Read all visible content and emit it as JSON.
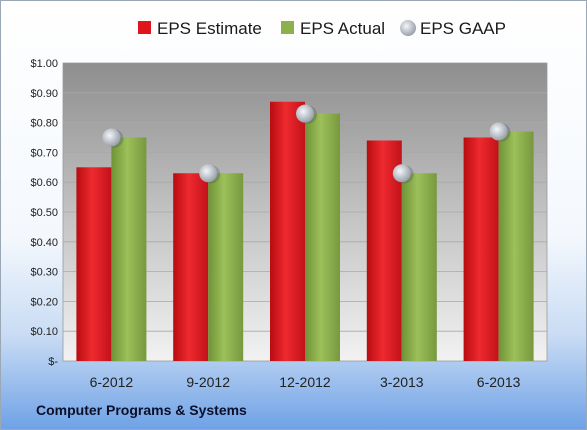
{
  "chart_data": {
    "type": "bar",
    "categories": [
      "6-2012",
      "9-2012",
      "12-2012",
      "3-2013",
      "6-2013"
    ],
    "series": [
      {
        "name": "EPS Estimate",
        "kind": "bar",
        "color": "#e0151c",
        "values": [
          0.65,
          0.63,
          0.87,
          0.74,
          0.75
        ]
      },
      {
        "name": "EPS Actual",
        "kind": "bar",
        "color": "#8db04a",
        "values": [
          0.75,
          0.63,
          0.83,
          0.63,
          0.77
        ]
      },
      {
        "name": "EPS GAAP",
        "kind": "marker",
        "color": "#c4c9d1",
        "values": [
          0.75,
          0.63,
          0.83,
          0.63,
          0.77
        ]
      }
    ],
    "y_ticks": [
      "$-",
      "$0.10",
      "$0.20",
      "$0.30",
      "$0.40",
      "$0.50",
      "$0.60",
      "$0.70",
      "$0.80",
      "$0.90",
      "$1.00"
    ],
    "ylim": [
      0,
      1.0
    ],
    "grid": true,
    "legend_position": "top"
  },
  "footer": {
    "company": "Computer Programs & Systems"
  }
}
